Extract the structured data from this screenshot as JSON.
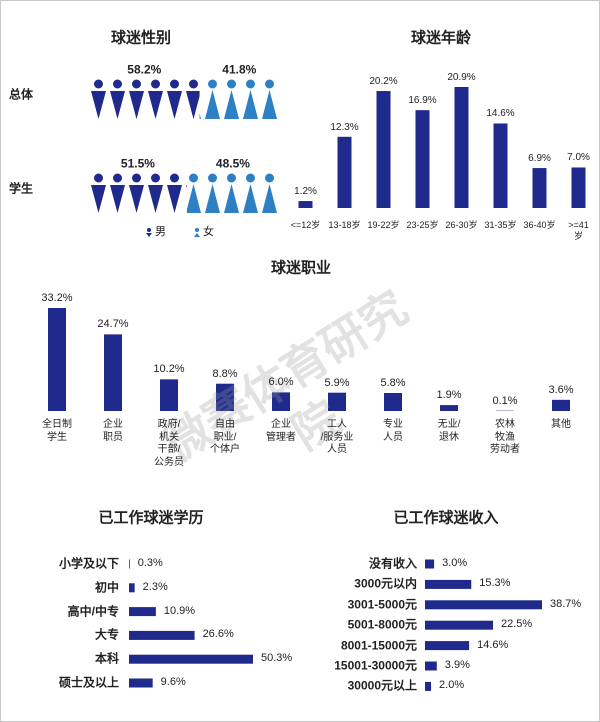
{
  "watermark": "微赛体育研究院",
  "chart_data": [
    {
      "type": "pictogram",
      "title": "球迷性别",
      "categories": [
        "总体",
        "学生"
      ],
      "series": [
        {
          "name": "男",
          "color": "#1f2a8c",
          "values": [
            58.2,
            51.5
          ],
          "value_labels": [
            "58.2%",
            "51.5%"
          ]
        },
        {
          "name": "女",
          "color": "#2e80c4",
          "values": [
            41.8,
            48.5
          ],
          "value_labels": [
            "41.8%",
            "48.5%"
          ]
        }
      ]
    },
    {
      "type": "bar",
      "title": "球迷年龄",
      "color": "#1f2a8c",
      "categories": [
        "<=12岁",
        "13-18岁",
        "19-22岁",
        "23-25岁",
        "26-30岁",
        "31-35岁",
        "36-40岁",
        ">=41岁"
      ],
      "values": [
        1.2,
        12.3,
        20.2,
        16.9,
        20.9,
        14.6,
        6.9,
        7.0
      ],
      "value_labels": [
        "1.2%",
        "12.3%",
        "20.2%",
        "16.9%",
        "20.9%",
        "14.6%",
        "6.9%",
        "7.0%"
      ]
    },
    {
      "type": "bar",
      "title": "球迷职业",
      "color": "#1f2a8c",
      "categories": [
        "全日制\n学生",
        "企业\n职员",
        "政府/\n机关\n干部/\n公务员",
        "自由\n职业/\n个体户",
        "企业\n管理者",
        "工人\n/服务业\n人员",
        "专业\n人员",
        "无业/\n退休",
        "农林\n牧渔\n劳动者",
        "其他"
      ],
      "values": [
        33.2,
        24.7,
        10.2,
        8.8,
        6.0,
        5.9,
        5.8,
        1.9,
        0.1,
        3.6
      ],
      "value_labels": [
        "33.2%",
        "24.7%",
        "10.2%",
        "8.8%",
        "6.0%",
        "5.9%",
        "5.8%",
        "1.9%",
        "0.1%",
        "3.6%"
      ]
    },
    {
      "type": "hbar",
      "title": "已工作球迷学历",
      "color": "#1f2a8c",
      "categories": [
        "小学及以下",
        "初中",
        "高中/中专",
        "大专",
        "本科",
        "硕士及以上"
      ],
      "values": [
        0.3,
        2.3,
        10.9,
        26.6,
        50.3,
        9.6
      ],
      "value_labels": [
        "0.3%",
        "2.3%",
        "10.9%",
        "26.6%",
        "50.3%",
        "9.6%"
      ]
    },
    {
      "type": "hbar",
      "title": "已工作球迷收入",
      "color": "#1f2a8c",
      "categories": [
        "没有收入",
        "3000元以内",
        "3001-5000元",
        "5001-8000元",
        "8001-15000元",
        "15001-30000元",
        "30000元以上"
      ],
      "values": [
        3.0,
        15.3,
        38.7,
        22.5,
        14.6,
        3.9,
        2.0
      ],
      "value_labels": [
        "3.0%",
        "15.3%",
        "38.7%",
        "22.5%",
        "14.6%",
        "3.9%",
        "2.0%"
      ]
    }
  ]
}
